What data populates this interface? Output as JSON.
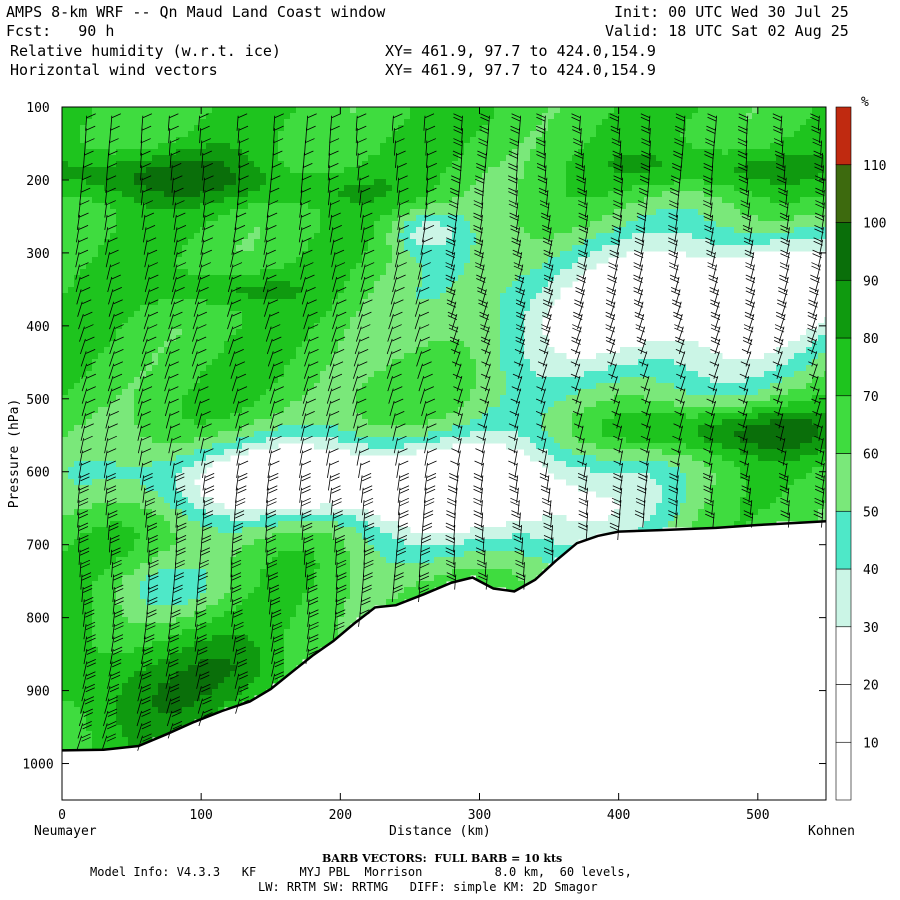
{
  "header": {
    "title": "AMPS 8-km WRF -- Qn Maud Land Coast window",
    "forecast": "Fcst:   90 h",
    "field1": "Relative humidity (w.r.t. ice)",
    "field2": "Horizontal wind vectors",
    "xy1": "XY= 461.9, 97.7 to 424.0,154.9",
    "xy2": "XY= 461.9, 97.7 to 424.0,154.9",
    "init": "Init: 00 UTC Wed 30 Jul 25",
    "valid": "Valid: 18 UTC Sat 02 Aug 25"
  },
  "axes": {
    "y_label": "Pressure (hPa)",
    "x_label": "Distance (km)",
    "left_endpoint": "Neumayer",
    "right_endpoint": "Kohnen",
    "y_ticks": [
      "100",
      "200",
      "300",
      "400",
      "500",
      "600",
      "700",
      "800",
      "900",
      "1000"
    ],
    "x_ticks": [
      "0",
      "100",
      "200",
      "300",
      "400",
      "500"
    ]
  },
  "colorbar": {
    "unit": "%",
    "labels": [
      "10",
      "20",
      "30",
      "40",
      "50",
      "60",
      "70",
      "80",
      "90",
      "100",
      "110"
    ],
    "colors": [
      "#ffffff",
      "#ffffff",
      "#ffffff",
      "#cbf5e6",
      "#4ee8c8",
      "#7ae87a",
      "#3fdc3f",
      "#1ec41e",
      "#0f9a0f",
      "#0a6f0a",
      "#3d6a0e",
      "#c02a10"
    ]
  },
  "footer": {
    "barb_note": "BARB VECTORS:  FULL BARB = 10 kts",
    "model_info": "Model Info: V4.3.3   KF      MYJ PBL  Morrison          8.0 km,  60 levels,",
    "physics": "LW: RRTM SW: RRTMG   DIFF: simple KM: 2D Smagor"
  },
  "chart_data": {
    "type": "heatmap",
    "title": "Relative humidity (w.r.t. ice)",
    "xlabel": "Distance (km)",
    "ylabel": "Pressure (hPa)",
    "xlim": [
      0,
      549
    ],
    "ylim": [
      1050,
      100
    ],
    "x_ticks": [
      0,
      100,
      200,
      300,
      400,
      500
    ],
    "y_ticks": [
      100,
      200,
      300,
      400,
      500,
      600,
      700,
      800,
      900,
      1000
    ],
    "terrain_pressure": {
      "x": [
        0,
        30,
        55,
        75,
        95,
        115,
        135,
        150,
        165,
        180,
        195,
        210,
        225,
        240,
        260,
        280,
        295,
        310,
        325,
        340,
        355,
        370,
        385,
        400,
        430,
        470,
        500,
        530,
        549
      ],
      "p": [
        982,
        981,
        976,
        960,
        943,
        928,
        915,
        898,
        875,
        852,
        832,
        808,
        786,
        783,
        768,
        752,
        745,
        760,
        764,
        748,
        722,
        698,
        688,
        682,
        680,
        677,
        673,
        670,
        668
      ]
    },
    "rh_field_description": {
      "levels": [
        10,
        20,
        30,
        40,
        50,
        60,
        70,
        80,
        90,
        100,
        110
      ],
      "features": [
        {
          "region": "upper troposphere 150-330 hPa, 0-250 km",
          "rh_range": [
            70,
            100
          ]
        },
        {
          "region": "upper troposphere 150-230 hPa, 400-549 km",
          "rh_range": [
            80,
            100
          ]
        },
        {
          "region": "dry layer 280-650 hPa, 300-549 km",
          "rh_range": [
            0,
            30
          ]
        },
        {
          "region": "dry layer 500-720 hPa, 50-300 km",
          "rh_range": [
            0,
            40
          ]
        },
        {
          "region": "moist band 500-580 hPa, 400-549 km",
          "rh_range": [
            60,
            80
          ]
        },
        {
          "region": "near-surface 750-980 hPa, 0-150 km",
          "rh_range": [
            50,
            90
          ]
        }
      ]
    },
    "wind_barbs": {
      "units": "kts",
      "full_barb": 10,
      "column_x_km": [
        15,
        35,
        60,
        80,
        100,
        125,
        150,
        175,
        195,
        215,
        240,
        260,
        285,
        305,
        330,
        350,
        375,
        400,
        420,
        445,
        470,
        495,
        520,
        545
      ]
    }
  }
}
